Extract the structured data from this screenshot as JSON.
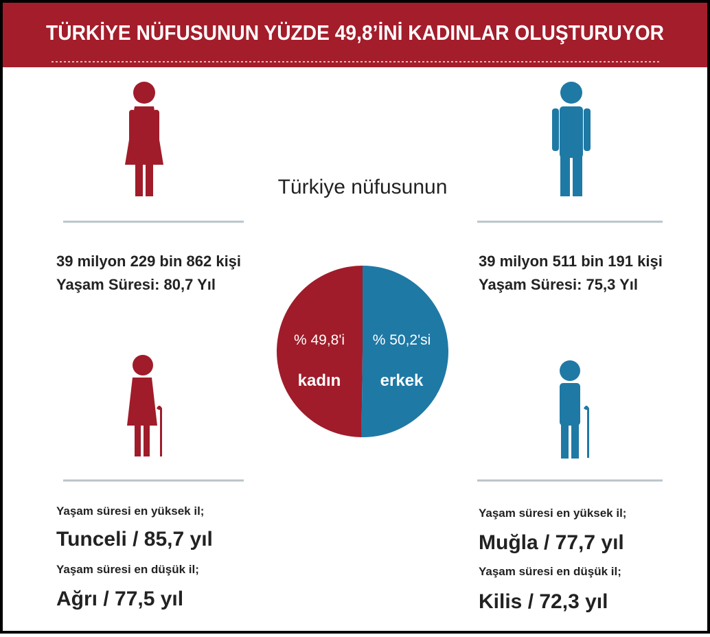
{
  "title": "TÜRKİYE NÜFUSUNUN YÜZDE 49,8’İNİ KADINLAR OLUŞTURUYOR",
  "chart_data": {
    "type": "pie",
    "title": "Türkiye nüfusunun",
    "categories": [
      "kadın",
      "erkek"
    ],
    "values": [
      49.8,
      50.2
    ],
    "value_labels": [
      "% 49,8'i",
      "% 50,2'si"
    ],
    "colors": [
      "#a01c2a",
      "#1f79a5"
    ]
  },
  "left": {
    "population": "39 milyon 229 bin 862 kişi",
    "life": "Yaşam Süresi: 80,7 Yıl",
    "high_label": "Yaşam süresi en yüksek il;",
    "high": "Tunceli / 85,7 yıl",
    "low_label": "Yaşam süresi en düşük il;",
    "low": "Ağrı / 77,5 yıl"
  },
  "right": {
    "population": "39 milyon 511 bin 191 kişi",
    "life": "Yaşam Süresi: 75,3 Yıl",
    "high_label": "Yaşam süresi en yüksek il;",
    "high": "Muğla / 77,7 yıl",
    "low_label": "Yaşam süresi en düşük il;",
    "low": "Kilis / 72,3 yıl"
  }
}
